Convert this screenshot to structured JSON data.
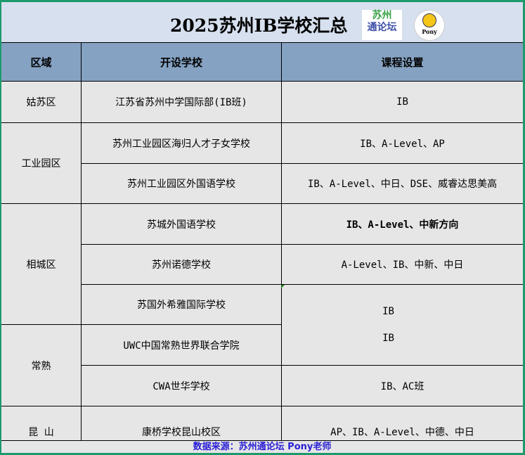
{
  "title": "2025苏州IB学校汇总",
  "logos": {
    "forum": "苏州通论坛",
    "pony": "Pony"
  },
  "headers": [
    "区域",
    "开设学校",
    "课程设置"
  ],
  "regions": [
    "姑苏区",
    "工业园区",
    "相城区",
    "常熟",
    "昆  山"
  ],
  "schools": [
    "江苏省苏州中学国际部(IB班)",
    "苏州工业园区海归人才子女学校",
    "苏州工业园区外国语学校",
    "苏城外国语学校",
    "苏州诺德学校",
    "苏国外希雅国际学校",
    "UWC中国常熟世界联合学院",
    "CWA世华学校",
    "康桥学校昆山校区"
  ],
  "courses": [
    "IB",
    "IB、A-Level、AP",
    "IB、A-Level、中日、DSE、威睿达思美高",
    "IB、A-Level、中新方向",
    "A-Level、IB、中新、中日",
    "IB",
    "IB",
    "IB、AC班",
    "AP、IB、A-Level、中德、中日"
  ],
  "footer": "数据来源：苏州通论坛 Pony老师",
  "colors": {
    "frame": "#1d9a6c",
    "header": "#85a2c2",
    "title_bg": "#d7e0ef",
    "footer_text": "#2a1fd6"
  }
}
